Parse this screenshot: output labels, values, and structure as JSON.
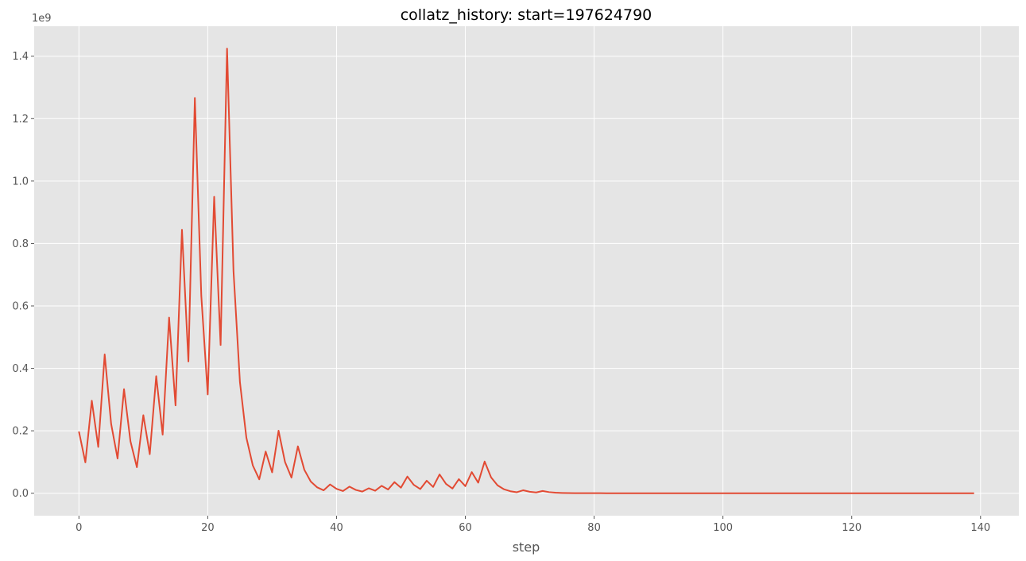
{
  "chart_data": {
    "type": "line",
    "title": "collatz_history: start=197624790",
    "xlabel": "step",
    "ylabel": "",
    "y_offset_label": "1e9",
    "xlim": [
      -6.95,
      145.95
    ],
    "ylim": [
      -72000000,
      1496000000
    ],
    "x_ticks": [
      0,
      20,
      40,
      60,
      80,
      100,
      120,
      140
    ],
    "x_tick_labels": [
      "0",
      "20",
      "40",
      "60",
      "80",
      "100",
      "120",
      "140"
    ],
    "y_ticks": [
      0,
      200000000,
      400000000,
      600000000,
      800000000,
      1000000000,
      1200000000,
      1400000000
    ],
    "y_tick_labels": [
      "0.0",
      "0.2",
      "0.4",
      "0.6",
      "0.8",
      "1.0",
      "1.2",
      "1.4"
    ],
    "grid": true,
    "style": "ggplot",
    "colors": {
      "background": "#e5e5e5",
      "grid": "#ffffff",
      "series": "#e24a33"
    },
    "series": [
      {
        "color": "#e24a33",
        "x": [
          0,
          1,
          2,
          3,
          4,
          5,
          6,
          7,
          8,
          9,
          10,
          11,
          12,
          13,
          14,
          15,
          16,
          17,
          18,
          19,
          20,
          21,
          22,
          23,
          24,
          25,
          26,
          27,
          28,
          29,
          30,
          31,
          32,
          33,
          34,
          35,
          36,
          37,
          38,
          39,
          40,
          41,
          42,
          43,
          44,
          45,
          46,
          47,
          48,
          49,
          50,
          51,
          52,
          53,
          54,
          55,
          56,
          57,
          58,
          59,
          60,
          61,
          62,
          63,
          64,
          65,
          66,
          67,
          68,
          69,
          70,
          71,
          72,
          73,
          74,
          75,
          76,
          77,
          78,
          79,
          80,
          81,
          82,
          83,
          84,
          85,
          86,
          87,
          88,
          89,
          90,
          91,
          92,
          93,
          94,
          95,
          96,
          97,
          98,
          99,
          100,
          101,
          102,
          103,
          104,
          105,
          106,
          107,
          108,
          109,
          110,
          111,
          112,
          113,
          114,
          115,
          116,
          117,
          118,
          119,
          120,
          121,
          122,
          123,
          124,
          125,
          126,
          127,
          128,
          129,
          130,
          131,
          132,
          133,
          134,
          135,
          136,
          137,
          138,
          139
        ],
        "values": [
          197624790,
          98812395,
          296437186,
          148218593,
          444655780,
          222327890,
          111163945,
          333491836,
          166745918,
          83372959,
          250118878,
          125059439,
          375178318,
          187589159,
          562767478,
          281383739,
          844151218,
          422075609,
          1266226828,
          633113414,
          316556707,
          949670122,
          474835061,
          1424505184,
          712252592,
          356126296,
          178063148,
          89031574,
          44515787,
          133547362,
          66773681,
          200321044,
          100160522,
          50080261,
          150240784,
          75120392,
          37560196,
          18780098,
          9390049,
          28170148,
          14085074,
          7042537,
          21127612,
          10563806,
          5281903,
          15845710,
          7922855,
          23768566,
          11884283,
          35652850,
          17826425,
          53479276,
          26739638,
          13369819,
          40109458,
          20054729,
          60164188,
          30082094,
          15041047,
          45123142,
          22561571,
          67684714,
          33842357,
          101527072,
          50763536,
          25381768,
          12690884,
          6345442,
          3172721,
          9518164,
          4759082,
          2379541,
          7138624,
          3569312,
          1784656,
          892328,
          446164,
          223082,
          111541,
          334624,
          167312,
          83656,
          41828,
          20914,
          10457,
          31372,
          15686,
          7843,
          23530,
          11765,
          35296,
          17648,
          8824,
          4412,
          2206,
          1103,
          3310,
          1655,
          4966,
          2483,
          7450,
          3725,
          11176,
          5588,
          2794,
          1397,
          4192,
          2096,
          1048,
          524,
          262,
          131,
          394,
          197,
          592,
          296,
          148,
          74,
          37,
          112,
          56,
          28,
          14,
          7,
          22,
          11,
          34,
          17,
          52,
          26,
          13,
          40,
          20,
          10,
          5,
          16,
          8,
          4,
          2,
          1
        ]
      }
    ]
  }
}
